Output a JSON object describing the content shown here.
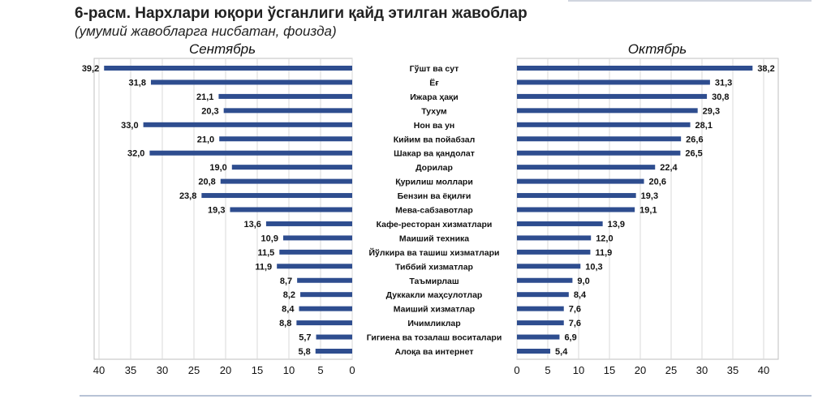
{
  "header": {
    "title": "6-расм. Нархлари юқори ўсганлиги қайд этилган жавоблар",
    "subtitle": "(умумий жавобларга нисбатан, фоизда)"
  },
  "colors": {
    "bar": "#2e4d8f",
    "grid": "#d9d9d9",
    "axis": "#bfbfbf"
  },
  "chart_data": {
    "type": "bar",
    "orientation": "horizontal-butterfly",
    "categories": [
      "Гўшт ва сут",
      "Ёғ",
      "Ижара ҳақи",
      "Тухум",
      "Нон ва ун",
      "Кийим ва пойабзал",
      "Шакар ва қандолат",
      "Дорилар",
      "Қурилиш моллари",
      "Бензин ва ёқилғи",
      "Мева-сабзавотлар",
      "Кафе-ресторан хизматлари",
      "Маиший техника",
      "Йўлкира ва ташиш хизматлари",
      "Тиббий хизматлар",
      "Таъмирлаш",
      "Дуккакли маҳсулотлар",
      "Маиший хизматлар",
      "Ичимликлар",
      "Гигиена ва тозалаш воситалари",
      "Алоқа ва интернет"
    ],
    "series": [
      {
        "name": "Сентябрь",
        "values": [
          39.2,
          31.8,
          21.1,
          20.3,
          33.0,
          21.0,
          32.0,
          19.0,
          20.8,
          23.8,
          19.3,
          13.6,
          10.9,
          11.5,
          11.9,
          8.7,
          8.2,
          8.4,
          8.8,
          5.7,
          5.8
        ],
        "labels": [
          "39,2",
          "31,8",
          "21,1",
          "20,3",
          "33,0",
          "21,0",
          "32,0",
          "19,0",
          "20,8",
          "23,8",
          "19,3",
          "13,6",
          "10,9",
          "11,5",
          "11,9",
          "8,7",
          "8,2",
          "8,4",
          "8,8",
          "5,7",
          "5,8"
        ]
      },
      {
        "name": "Октябрь",
        "values": [
          38.2,
          31.3,
          30.8,
          29.3,
          28.1,
          26.6,
          26.5,
          22.4,
          20.6,
          19.3,
          19.1,
          13.9,
          12.0,
          11.9,
          10.3,
          9.0,
          8.4,
          7.6,
          7.6,
          6.9,
          5.4
        ],
        "labels": [
          "38,2",
          "31,3",
          "30,8",
          "29,3",
          "28,1",
          "26,6",
          "26,5",
          "22,4",
          "20,6",
          "19,3",
          "19,1",
          "13,9",
          "12,0",
          "11,9",
          "10,3",
          "9,0",
          "8,4",
          "7,6",
          "7,6",
          "6,9",
          "5,4"
        ]
      }
    ],
    "xlim": [
      0,
      40
    ],
    "xticks": [
      "0",
      "5",
      "10",
      "15",
      "20",
      "25",
      "30",
      "35",
      "40"
    ],
    "left_axis_reversed": true,
    "grid": true
  }
}
